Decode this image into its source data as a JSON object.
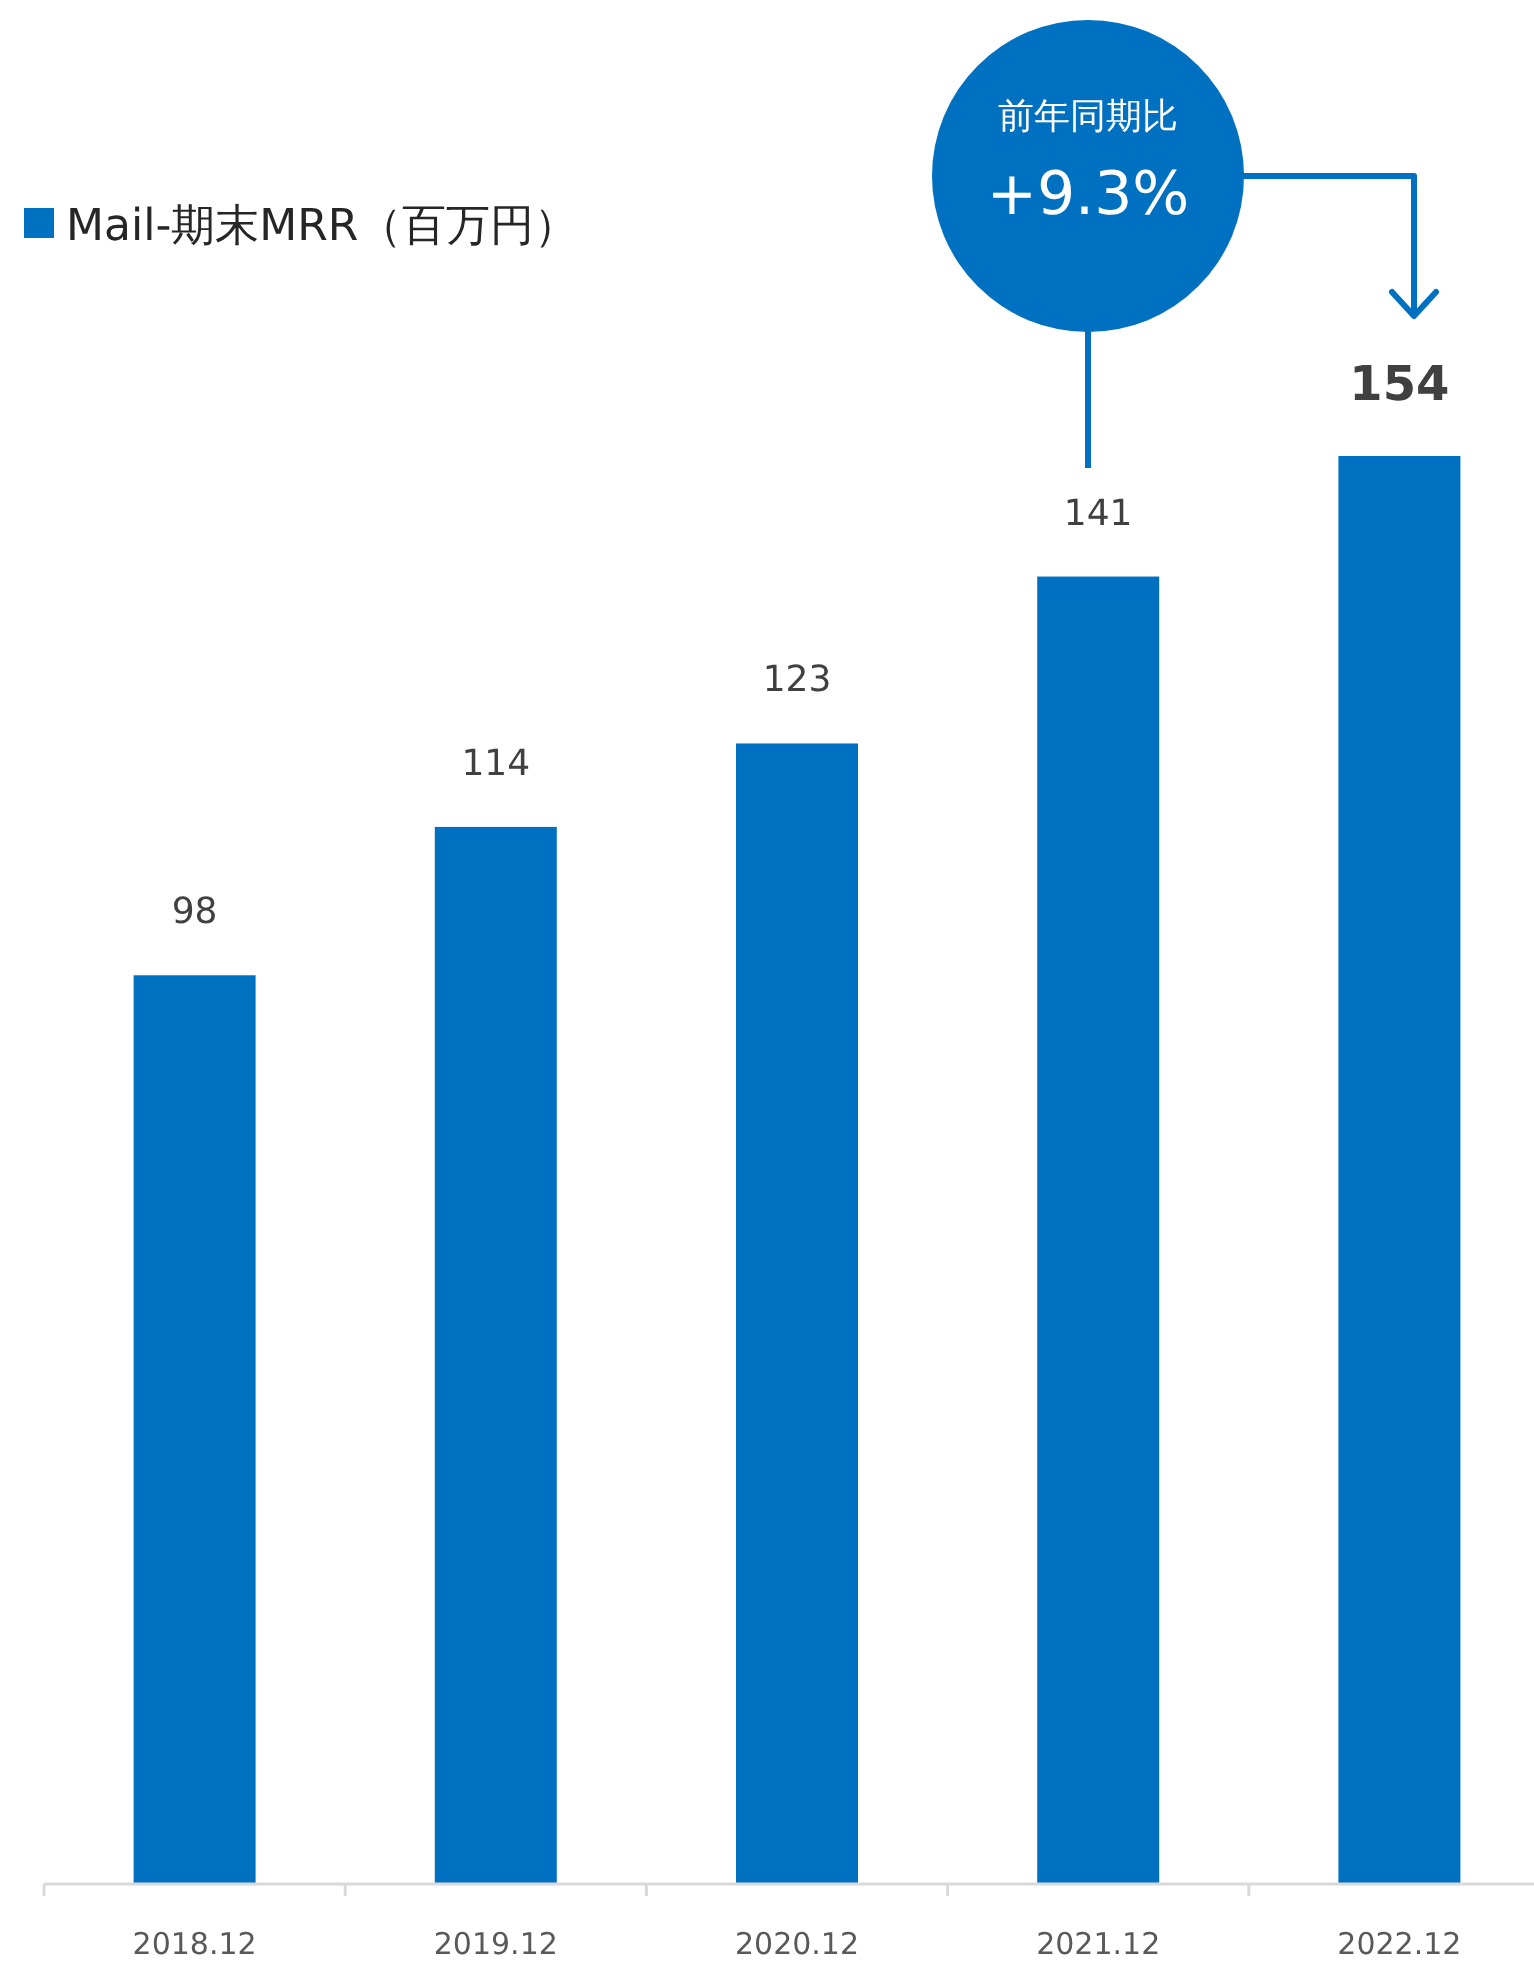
{
  "chart_data": {
    "type": "bar",
    "categories": [
      "2018.12",
      "2019.12",
      "2020.12",
      "2021.12",
      "2022.12"
    ],
    "series": [
      {
        "name": "Mail-期末MRR（百万円）",
        "color": "#0070c0",
        "values": [
          98,
          114,
          123,
          141,
          154
        ]
      }
    ],
    "data_labels": true,
    "legend": "top left",
    "tick_labels": "x",
    "annotations": [
      "前年同期比",
      "+9.3%"
    ]
  }
}
